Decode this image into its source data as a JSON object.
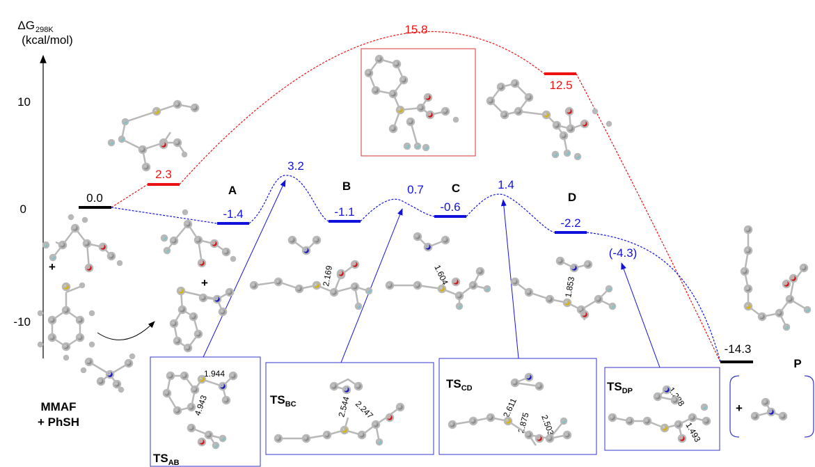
{
  "axis": {
    "label_line1_main": "ΔG",
    "label_line1_sub": "298K",
    "label_line2": "(kcal/mol)",
    "ticks": [
      {
        "value": 10,
        "label": "10"
      },
      {
        "value": 0,
        "label": "0"
      },
      {
        "value": -10,
        "label": "-10"
      }
    ]
  },
  "colors": {
    "main": "#1111dd",
    "direct": "#ee1111",
    "endpoint": "#000000",
    "box": "#3333cc"
  },
  "reactants": {
    "line1": "MMAF",
    "line2": "+ PhSH"
  },
  "product_label": "P",
  "states": [
    {
      "id": "start",
      "value": "0.0",
      "color": "black"
    },
    {
      "id": "A",
      "name": "A",
      "value": "-1.4",
      "color": "blue"
    },
    {
      "id": "TS_AB",
      "value": "3.2",
      "color": "blue"
    },
    {
      "id": "B",
      "name": "B",
      "value": "-1.1",
      "color": "blue"
    },
    {
      "id": "TS_BC",
      "value": "0.7",
      "color": "blue"
    },
    {
      "id": "C",
      "name": "C",
      "value": "-0.6",
      "color": "blue"
    },
    {
      "id": "TS_CD",
      "value": "1.4",
      "color": "blue"
    },
    {
      "id": "D",
      "name": "D",
      "value": "-2.2",
      "color": "blue"
    },
    {
      "id": "TS_DP",
      "value": "(-4.3)",
      "color": "blue"
    },
    {
      "id": "P",
      "value": "-14.3",
      "color": "black"
    },
    {
      "id": "int_red",
      "value": "2.3",
      "color": "red"
    },
    {
      "id": "int_red2",
      "value": "12.5",
      "color": "red"
    },
    {
      "id": "TS_red",
      "value": "15.8",
      "color": "red"
    }
  ],
  "ts_boxes": [
    {
      "id": "TS_AB",
      "main": "TS",
      "sub": "AB",
      "distances": [
        "1.944",
        "4.943"
      ]
    },
    {
      "id": "TS_BC",
      "main": "TS",
      "sub": "BC",
      "distances": [
        "2.544",
        "2.247"
      ]
    },
    {
      "id": "TS_CD",
      "main": "TS",
      "sub": "CD",
      "distances": [
        "2.611",
        "2.875",
        "2.503"
      ]
    },
    {
      "id": "TS_DP",
      "main": "TS",
      "sub": "DP",
      "distances": [
        "1.288",
        "1.493"
      ]
    }
  ],
  "intermediate_distances": {
    "B": "2.169",
    "C": "1.604",
    "D": "1.853"
  },
  "plus_signs": [
    "+",
    "+",
    "+"
  ]
}
